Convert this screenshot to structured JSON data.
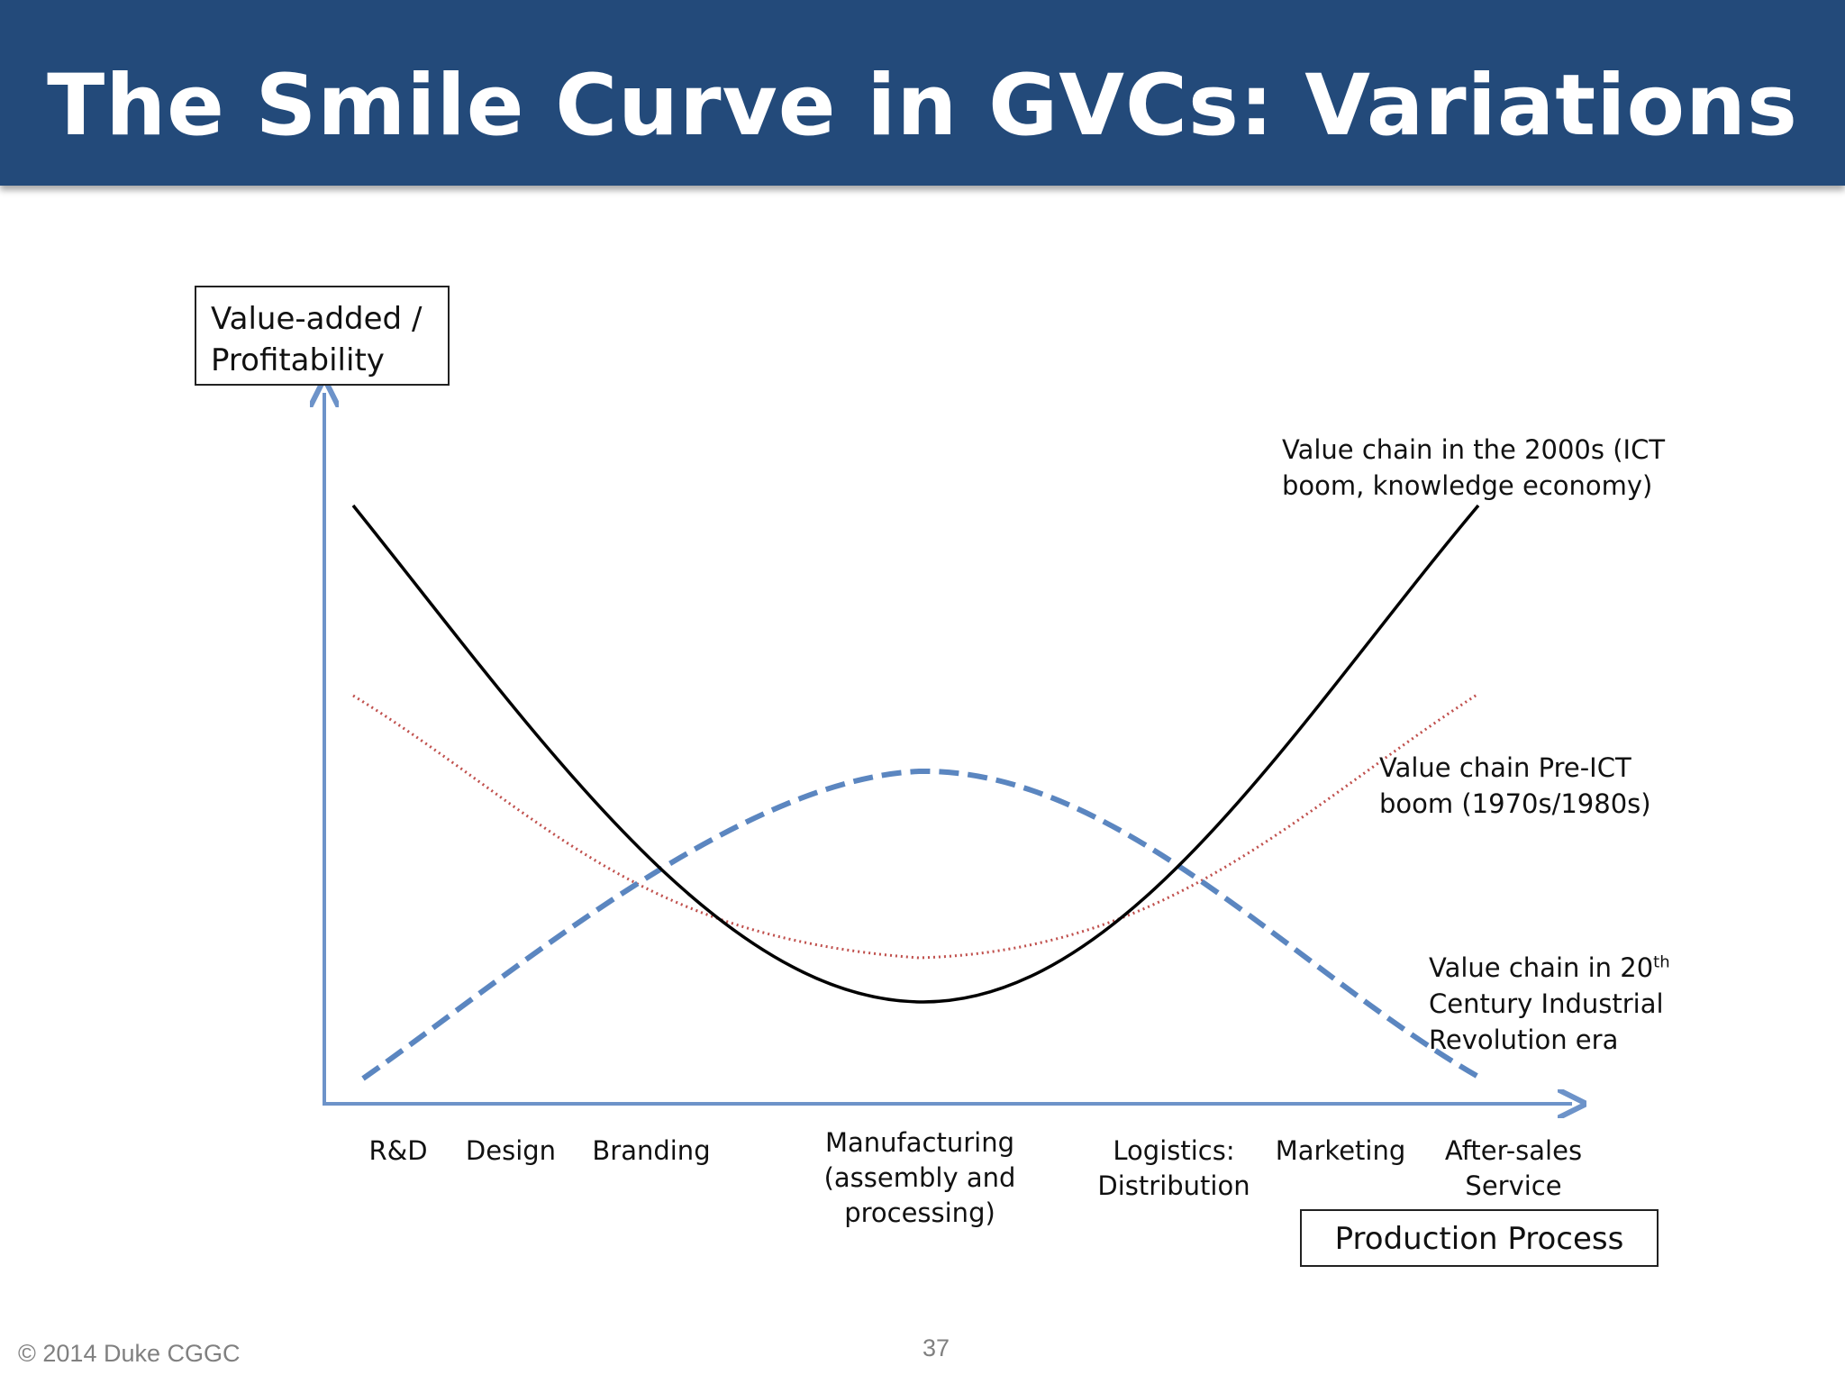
{
  "slide": {
    "title": "The Smile Curve in GVCs: Variations",
    "copyright": "© 2014 Duke CGGC",
    "page_number": "37"
  },
  "diagram": {
    "y_axis_label_line1": "Value-added /",
    "y_axis_label_line2": "Profitability",
    "x_axis_label": "Production Process",
    "stages": [
      {
        "lines": [
          "R&D"
        ]
      },
      {
        "lines": [
          "Design"
        ]
      },
      {
        "lines": [
          "Branding"
        ]
      },
      {
        "lines": [
          "Manufacturing",
          "(assembly and",
          "processing)"
        ]
      },
      {
        "lines": [
          "Logistics:",
          "Distribution"
        ]
      },
      {
        "lines": [
          "Marketing"
        ]
      },
      {
        "lines": [
          "After-sales",
          "Service"
        ]
      }
    ],
    "curves": [
      {
        "name": "Value chain in the 2000s",
        "label_line1": "Value chain in the 2000s (ICT",
        "label_line2": "boom, knowledge economy)",
        "style": "solid",
        "color": "#000000"
      },
      {
        "name": "Value chain Pre-ICT boom",
        "label_line1": "Value chain Pre-ICT",
        "label_line2": "boom (1970s/1980s)",
        "style": "dotted",
        "color": "#c0504d"
      },
      {
        "name": "Value chain in 20th Century Industrial Revolution era",
        "label_line1_pre": "Value chain in 20",
        "label_line1_sup": "th",
        "label_line2": "Century Industrial",
        "label_line3": "Revolution era",
        "style": "dashed",
        "color": "#5b86c0"
      }
    ],
    "axis_color": "#6d93c9"
  }
}
